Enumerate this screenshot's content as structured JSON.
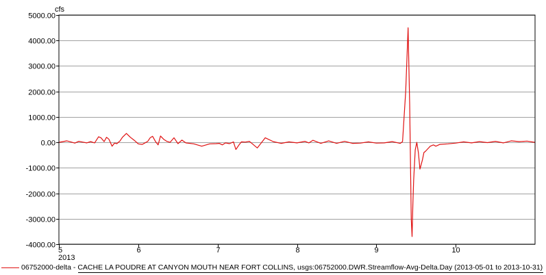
{
  "chart_data": {
    "type": "line",
    "ylabel": "cfs",
    "xlabel": "",
    "xlim": [
      5.0,
      11.0
    ],
    "ylim": [
      -4000,
      5000
    ],
    "yticks": [
      5000,
      4000,
      3000,
      2000,
      1000,
      0,
      -1000,
      -2000,
      -3000,
      -4000
    ],
    "ytick_labels": [
      "5000.00",
      "4000.00",
      "3000.00",
      "2000.00",
      "1000.00",
      "0.00",
      "-1000.00",
      "-2000.00",
      "-3000.00",
      "-4000.00"
    ],
    "xticks": [
      5,
      6,
      7,
      8,
      9,
      10
    ],
    "xtick_labels": [
      "5",
      "6",
      "7",
      "8",
      "9",
      "10"
    ],
    "x_year_label": "2013",
    "grid": true,
    "legend_position": "bottom",
    "series": [
      {
        "name": "06752000-delta - CACHE LA POUDRE AT CANYON MOUTH NEAR FORT COLLINS, usgs:06752000.DWR.Streamflow-Avg-Delta.Day (2013-05-01 to 2013-10-31)",
        "color": "#e01010",
        "x": [
          5.0,
          5.05,
          5.1,
          5.15,
          5.2,
          5.25,
          5.3,
          5.35,
          5.4,
          5.45,
          5.5,
          5.53,
          5.57,
          5.6,
          5.63,
          5.67,
          5.7,
          5.73,
          5.77,
          5.8,
          5.85,
          5.9,
          5.95,
          6.0,
          6.05,
          6.08,
          6.12,
          6.15,
          6.18,
          6.22,
          6.25,
          6.28,
          6.32,
          6.36,
          6.4,
          6.45,
          6.5,
          6.55,
          6.6,
          6.7,
          6.8,
          6.9,
          6.98,
          7.02,
          7.06,
          7.1,
          7.15,
          7.2,
          7.23,
          7.27,
          7.3,
          7.35,
          7.4,
          7.5,
          7.6,
          7.7,
          7.8,
          7.9,
          8.0,
          8.1,
          8.15,
          8.2,
          8.3,
          8.4,
          8.5,
          8.6,
          8.7,
          8.8,
          8.9,
          9.0,
          9.1,
          9.2,
          9.3,
          9.33,
          9.37,
          9.4,
          9.42,
          9.44,
          9.45,
          9.46,
          9.47,
          9.49,
          9.51,
          9.53,
          9.55,
          9.58,
          9.6,
          9.62,
          9.65,
          9.68,
          9.72,
          9.75,
          9.8,
          9.9,
          10.0,
          10.1,
          10.2,
          10.3,
          10.4,
          10.5,
          10.6,
          10.7,
          10.8,
          10.9,
          11.0
        ],
        "values": [
          0,
          30,
          60,
          20,
          -30,
          40,
          10,
          -20,
          30,
          -20,
          220,
          180,
          30,
          200,
          120,
          -150,
          -30,
          -50,
          60,
          200,
          350,
          200,
          80,
          -60,
          -80,
          -30,
          40,
          180,
          240,
          20,
          -100,
          250,
          120,
          40,
          0,
          180,
          -50,
          90,
          -20,
          -60,
          -150,
          -60,
          -50,
          -40,
          -100,
          -20,
          -50,
          20,
          -280,
          -100,
          20,
          10,
          40,
          -220,
          180,
          30,
          -40,
          20,
          -20,
          40,
          -20,
          80,
          -40,
          60,
          -40,
          40,
          -40,
          -30,
          20,
          -30,
          -20,
          30,
          -40,
          30,
          2000,
          4500,
          1500,
          -3000,
          -3700,
          -2500,
          -1500,
          -300,
          0,
          -400,
          -1050,
          -700,
          -400,
          -350,
          -250,
          -150,
          -100,
          -150,
          -80,
          -60,
          -30,
          20,
          -20,
          30,
          -10,
          40,
          -20,
          60,
          30,
          50,
          0
        ]
      }
    ]
  }
}
